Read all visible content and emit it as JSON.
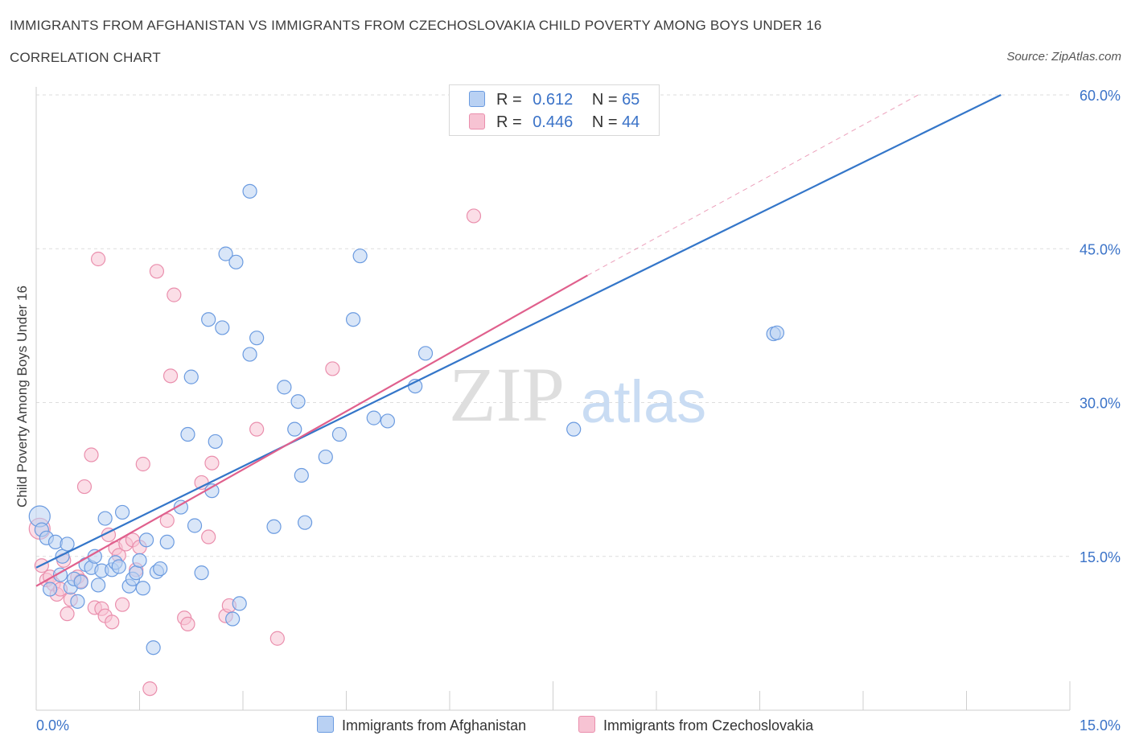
{
  "header": {
    "title": "IMMIGRANTS FROM AFGHANISTAN VS IMMIGRANTS FROM CZECHOSLOVAKIA CHILD POVERTY AMONG BOYS UNDER 16",
    "subtitle": "CORRELATION CHART",
    "source": "Source: ZipAtlas.com"
  },
  "legend": {
    "r_label": "R =",
    "n_label": "N =",
    "rows": [
      {
        "r": "0.612",
        "n": "65"
      },
      {
        "r": "0.446",
        "n": "44"
      }
    ]
  },
  "watermark": {
    "zip": "ZIP",
    "atlas": "atlas"
  },
  "colors": {
    "blue_fill": "#b9d1f3",
    "blue_stroke": "#6b9be0",
    "blue_line": "#3476c9",
    "pink_fill": "#f7c3d3",
    "pink_stroke": "#ea8fad",
    "pink_line": "#e0608d",
    "tick_label": "#3b73c8",
    "grid": "#dedede"
  },
  "chart_data": {
    "type": "scatter",
    "xlabel": "",
    "ylabel": "Child Poverty Among Boys Under 16",
    "xlim": [
      0,
      15
    ],
    "ylim": [
      0,
      60
    ],
    "x_tick_labels": [
      "0.0%",
      "15.0%"
    ],
    "y_ticks": [
      15,
      30,
      45,
      60
    ],
    "y_tick_labels": [
      "15.0%",
      "30.0%",
      "45.0%",
      "60.0%"
    ],
    "grid": true,
    "series": [
      {
        "name": "Immigrants from Afghanistan",
        "color": "blue",
        "r": 0.612,
        "n": 65,
        "trend": {
          "x0": 0,
          "y0": 13.9,
          "x1": 14.0,
          "y1": 60.0
        },
        "points": [
          [
            0.05,
            18.9
          ],
          [
            0.08,
            17.6
          ],
          [
            0.15,
            16.8
          ],
          [
            0.2,
            11.8
          ],
          [
            0.28,
            16.4
          ],
          [
            0.35,
            13.2
          ],
          [
            0.38,
            15.0
          ],
          [
            0.45,
            16.2
          ],
          [
            0.5,
            12.0
          ],
          [
            0.55,
            12.8
          ],
          [
            0.6,
            10.6
          ],
          [
            0.65,
            12.5
          ],
          [
            0.72,
            14.2
          ],
          [
            0.8,
            13.9
          ],
          [
            0.85,
            15.0
          ],
          [
            0.9,
            12.2
          ],
          [
            0.95,
            13.6
          ],
          [
            1.0,
            18.7
          ],
          [
            1.1,
            13.7
          ],
          [
            1.15,
            14.4
          ],
          [
            1.2,
            14.0
          ],
          [
            1.25,
            19.3
          ],
          [
            1.35,
            12.1
          ],
          [
            1.4,
            12.8
          ],
          [
            1.45,
            13.4
          ],
          [
            1.5,
            14.6
          ],
          [
            1.55,
            11.9
          ],
          [
            1.6,
            16.6
          ],
          [
            1.7,
            6.1
          ],
          [
            1.75,
            13.5
          ],
          [
            1.8,
            13.8
          ],
          [
            1.9,
            16.4
          ],
          [
            2.1,
            19.8
          ],
          [
            2.2,
            26.9
          ],
          [
            2.25,
            32.5
          ],
          [
            2.3,
            18.0
          ],
          [
            2.4,
            13.4
          ],
          [
            2.5,
            38.1
          ],
          [
            2.55,
            21.4
          ],
          [
            2.6,
            26.2
          ],
          [
            2.7,
            37.3
          ],
          [
            2.75,
            44.5
          ],
          [
            2.85,
            8.9
          ],
          [
            2.9,
            43.7
          ],
          [
            2.95,
            10.4
          ],
          [
            3.1,
            34.7
          ],
          [
            3.1,
            50.6
          ],
          [
            3.2,
            36.3
          ],
          [
            3.45,
            17.9
          ],
          [
            3.6,
            31.5
          ],
          [
            3.75,
            27.4
          ],
          [
            3.8,
            30.1
          ],
          [
            3.85,
            22.9
          ],
          [
            3.9,
            18.3
          ],
          [
            4.2,
            24.7
          ],
          [
            4.4,
            26.9
          ],
          [
            4.6,
            38.1
          ],
          [
            4.7,
            44.3
          ],
          [
            4.9,
            28.5
          ],
          [
            5.1,
            28.2
          ],
          [
            5.5,
            31.6
          ],
          [
            5.65,
            34.8
          ],
          [
            7.8,
            27.4
          ],
          [
            10.7,
            36.7
          ],
          [
            10.75,
            36.8
          ]
        ]
      },
      {
        "name": "Immigrants from Czechoslovakia",
        "color": "pink",
        "r": 0.446,
        "n": 44,
        "trend_solid": {
          "x0": 0,
          "y0": 12.1,
          "x1": 8.0,
          "y1": 42.4
        },
        "trend_dashed": {
          "x0": 8.0,
          "y0": 42.4,
          "x1": 12.8,
          "y1": 60.0
        },
        "points": [
          [
            0.05,
            17.7
          ],
          [
            0.08,
            14.1
          ],
          [
            0.15,
            12.7
          ],
          [
            0.2,
            13.0
          ],
          [
            0.25,
            12.3
          ],
          [
            0.3,
            11.3
          ],
          [
            0.35,
            11.8
          ],
          [
            0.4,
            14.6
          ],
          [
            0.45,
            9.4
          ],
          [
            0.5,
            10.8
          ],
          [
            0.6,
            13.0
          ],
          [
            0.65,
            12.6
          ],
          [
            0.7,
            21.8
          ],
          [
            0.8,
            24.9
          ],
          [
            0.85,
            10.0
          ],
          [
            0.9,
            44.0
          ],
          [
            0.95,
            9.9
          ],
          [
            1.0,
            9.2
          ],
          [
            1.05,
            17.1
          ],
          [
            1.1,
            8.6
          ],
          [
            1.15,
            15.8
          ],
          [
            1.2,
            15.1
          ],
          [
            1.25,
            10.3
          ],
          [
            1.3,
            16.2
          ],
          [
            1.4,
            16.6
          ],
          [
            1.45,
            13.7
          ],
          [
            1.5,
            15.9
          ],
          [
            1.55,
            24.0
          ],
          [
            1.65,
            2.1
          ],
          [
            1.75,
            42.8
          ],
          [
            1.9,
            18.5
          ],
          [
            1.95,
            32.6
          ],
          [
            2.0,
            40.5
          ],
          [
            2.15,
            9.0
          ],
          [
            2.2,
            8.4
          ],
          [
            2.4,
            22.2
          ],
          [
            2.5,
            16.9
          ],
          [
            2.55,
            24.1
          ],
          [
            2.75,
            9.2
          ],
          [
            2.8,
            10.2
          ],
          [
            3.2,
            27.4
          ],
          [
            3.5,
            7.0
          ],
          [
            4.3,
            33.3
          ],
          [
            6.35,
            48.2
          ]
        ]
      }
    ]
  }
}
